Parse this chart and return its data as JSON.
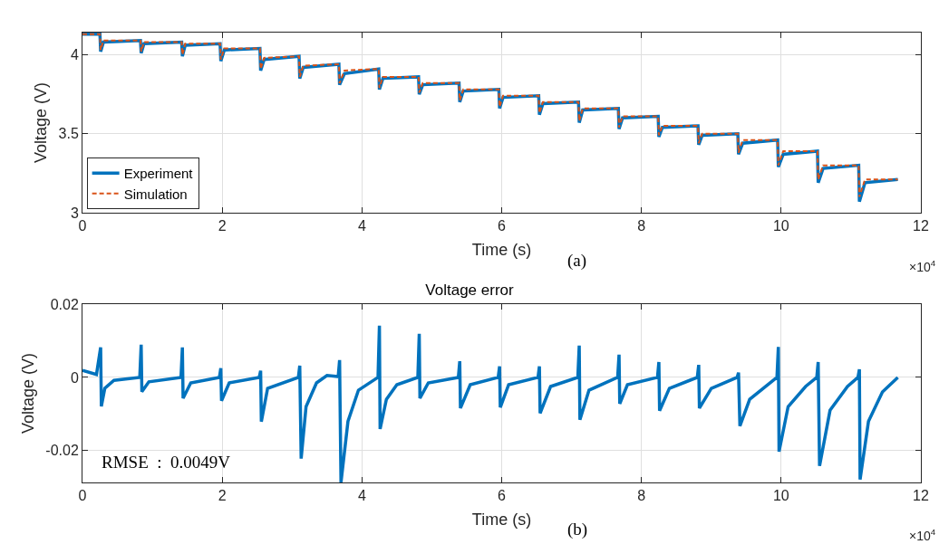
{
  "chart_data": [
    {
      "type": "line",
      "xlabel": "Time (s)",
      "ylabel": "Voltage (V)",
      "annotations": [
        "(a)",
        "×10$^{4}$"
      ],
      "x": [
        0,
        0.25,
        0.26,
        0.3,
        0.83,
        0.84,
        0.88,
        1.42,
        1.43,
        1.47,
        1.97,
        1.98,
        2.03,
        2.54,
        2.55,
        2.6,
        3.1,
        3.11,
        3.16,
        3.67,
        3.68,
        3.75,
        4.24,
        4.25,
        4.3,
        4.81,
        4.82,
        4.87,
        5.39,
        5.4,
        5.45,
        5.96,
        5.97,
        6.02,
        6.53,
        6.54,
        6.59,
        7.1,
        7.11,
        7.16,
        7.67,
        7.68,
        7.73,
        8.24,
        8.25,
        8.3,
        8.81,
        8.82,
        8.87,
        9.38,
        9.39,
        9.45,
        9.95,
        9.96,
        10.03,
        10.52,
        10.53,
        10.6,
        11.11,
        11.12,
        11.2,
        11.67
      ],
      "series": [
        {
          "name": "Experiment",
          "color": "#0072bd",
          "line_style": "solid",
          "values": [
            4.13,
            4.13,
            4.02,
            4.08,
            4.09,
            4.01,
            4.07,
            4.08,
            3.99,
            4.06,
            4.07,
            3.96,
            4.03,
            4.04,
            3.9,
            3.97,
            3.99,
            3.85,
            3.92,
            3.94,
            3.81,
            3.88,
            3.91,
            3.78,
            3.85,
            3.86,
            3.75,
            3.81,
            3.82,
            3.7,
            3.77,
            3.78,
            3.66,
            3.73,
            3.74,
            3.62,
            3.69,
            3.7,
            3.57,
            3.65,
            3.66,
            3.53,
            3.6,
            3.61,
            3.48,
            3.54,
            3.55,
            3.43,
            3.49,
            3.5,
            3.37,
            3.44,
            3.46,
            3.29,
            3.37,
            3.39,
            3.19,
            3.28,
            3.3,
            3.07,
            3.19,
            3.21
          ]
        },
        {
          "name": "Simulation",
          "color": "#d95319",
          "line_style": "dashed",
          "values": [
            4.13,
            4.13,
            4.03,
            4.09,
            4.09,
            4.02,
            4.08,
            4.08,
            4.0,
            4.07,
            4.07,
            3.97,
            4.04,
            4.04,
            3.91,
            3.98,
            3.99,
            3.86,
            3.93,
            3.94,
            3.82,
            3.9,
            3.91,
            3.79,
            3.86,
            3.86,
            3.76,
            3.82,
            3.82,
            3.71,
            3.78,
            3.78,
            3.67,
            3.74,
            3.74,
            3.63,
            3.7,
            3.7,
            3.58,
            3.66,
            3.66,
            3.54,
            3.61,
            3.61,
            3.49,
            3.55,
            3.55,
            3.44,
            3.5,
            3.5,
            3.38,
            3.46,
            3.46,
            3.3,
            3.39,
            3.39,
            3.21,
            3.3,
            3.3,
            3.1,
            3.21,
            3.21
          ]
        }
      ],
      "xlim": [
        0,
        12
      ],
      "xticks": [
        0,
        2,
        4,
        6,
        8,
        10,
        12
      ],
      "ylim": [
        3,
        4.14
      ],
      "yticks": [
        3,
        3.5,
        4
      ],
      "grid": true,
      "legend": "bottom left",
      "marker": "none"
    },
    {
      "type": "line",
      "title": "Voltage error",
      "xlabel": "Time (s)",
      "ylabel": "Voltage (V)",
      "annotations": [
        "(b)",
        "×10$^{4}$",
        "RMSE  :  0.0049V"
      ],
      "x": [
        0,
        0.2,
        0.26,
        0.27,
        0.32,
        0.45,
        0.82,
        0.84,
        0.85,
        0.95,
        1.41,
        1.43,
        1.44,
        1.55,
        1.96,
        1.98,
        1.99,
        2.1,
        2.53,
        2.55,
        2.56,
        2.65,
        3.09,
        3.11,
        3.13,
        3.2,
        3.35,
        3.5,
        3.66,
        3.68,
        3.7,
        3.8,
        3.95,
        4.23,
        4.25,
        4.26,
        4.35,
        4.5,
        4.8,
        4.82,
        4.83,
        4.95,
        5.38,
        5.4,
        5.41,
        5.55,
        5.95,
        5.97,
        5.98,
        6.1,
        6.52,
        6.54,
        6.55,
        6.7,
        7.09,
        7.11,
        7.12,
        7.25,
        7.66,
        7.68,
        7.69,
        7.8,
        8.23,
        8.25,
        8.26,
        8.4,
        8.8,
        8.82,
        8.83,
        9.0,
        9.37,
        9.39,
        9.41,
        9.55,
        9.94,
        9.96,
        9.97,
        10.1,
        10.35,
        10.51,
        10.53,
        10.55,
        10.7,
        10.95,
        11.1,
        11.12,
        11.13,
        11.25,
        11.45,
        11.67
      ],
      "series": [
        {
          "color": "#0072bd",
          "line_style": "solid",
          "values": [
            0.0019,
            0.0008,
            0.0082,
            -0.0079,
            -0.003,
            -0.0008,
            0,
            0.0089,
            -0.0039,
            -0.0012,
            0,
            0.0082,
            -0.0057,
            -0.0015,
            0,
            0.0025,
            -0.0064,
            -0.0015,
            0,
            0.0018,
            -0.0121,
            -0.003,
            0,
            0.0032,
            -0.0222,
            -0.008,
            -0.0015,
            0.0005,
            0.0002,
            0.0047,
            -0.0287,
            -0.012,
            -0.0035,
            0,
            0.0141,
            -0.0141,
            -0.006,
            -0.002,
            0,
            0.0119,
            -0.0057,
            -0.0015,
            0,
            0.0044,
            -0.0084,
            -0.002,
            0,
            0.003,
            -0.0082,
            -0.002,
            0,
            0.003,
            -0.0098,
            -0.0025,
            0,
            0.0087,
            -0.0116,
            -0.0035,
            0,
            0.0062,
            -0.0072,
            -0.002,
            0,
            0.0042,
            -0.0091,
            -0.003,
            0,
            0.0034,
            -0.0084,
            -0.003,
            0,
            0.0013,
            -0.0133,
            -0.006,
            0,
            0.0083,
            -0.0203,
            -0.008,
            -0.0025,
            0,
            0.0042,
            -0.0242,
            -0.009,
            -0.0025,
            0,
            0.0022,
            -0.0279,
            -0.012,
            -0.004,
            0
          ]
        }
      ],
      "xlim": [
        0,
        12
      ],
      "xticks": [
        0,
        2,
        4,
        6,
        8,
        10,
        12
      ],
      "ylim": [
        -0.0287,
        0.02
      ],
      "yticks": [
        -0.02,
        0,
        0.02
      ],
      "grid": true,
      "marker": "none"
    }
  ]
}
